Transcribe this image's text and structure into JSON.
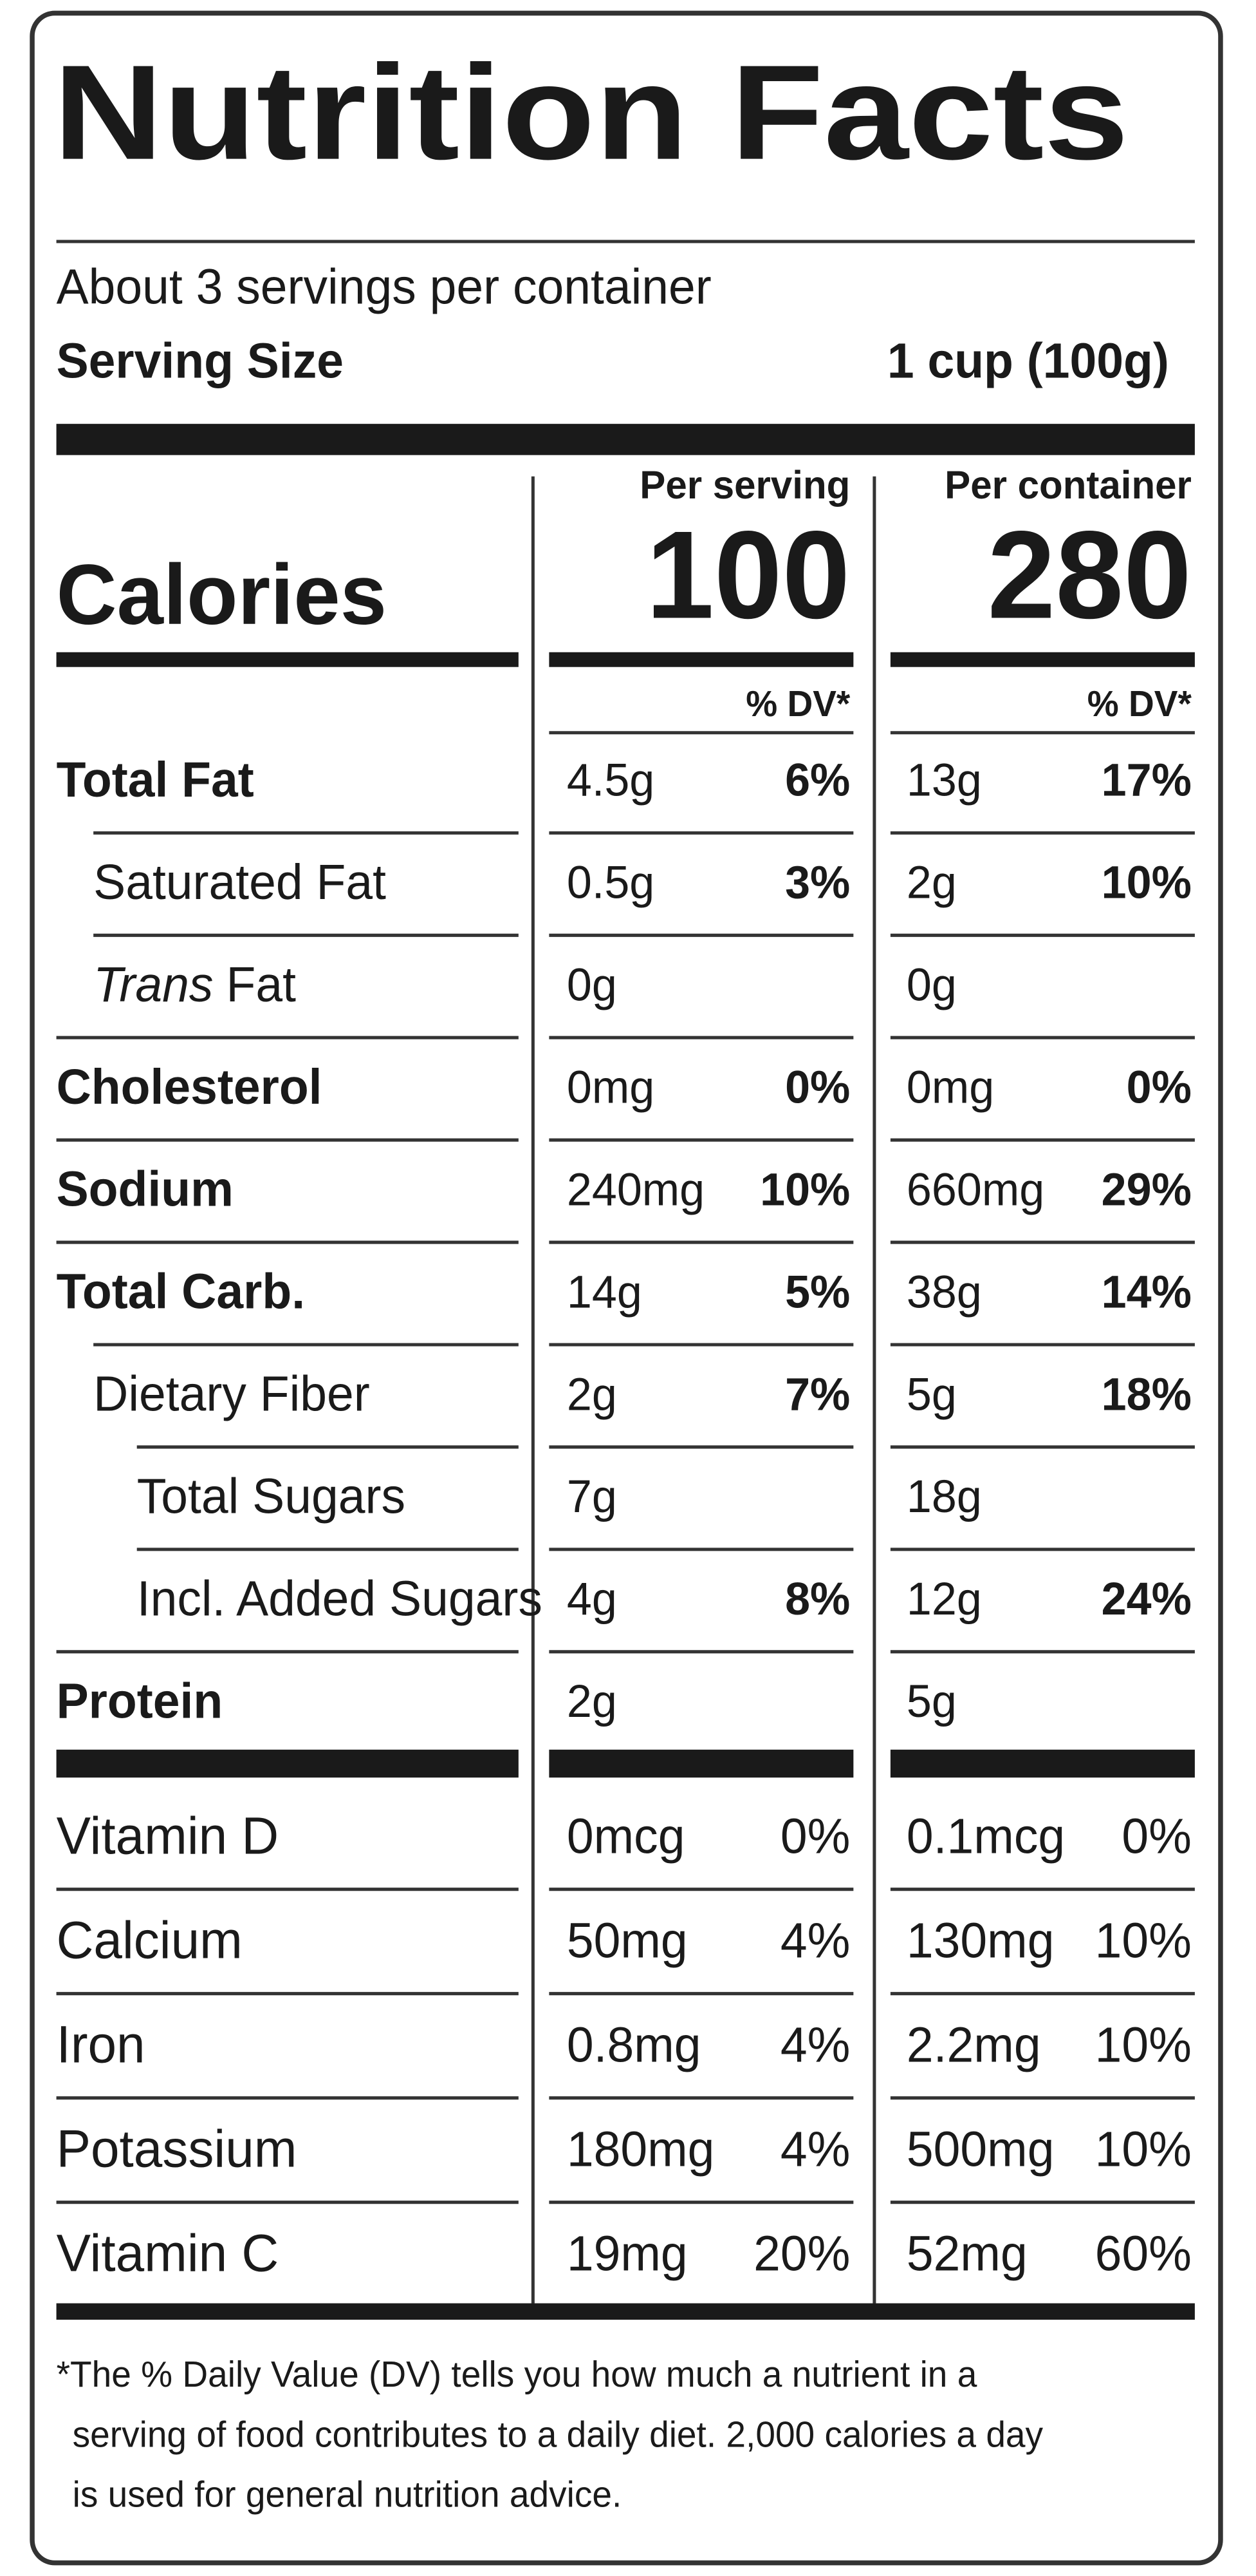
{
  "title": "Nutrition Facts",
  "servings": "About 3 servings per container",
  "serving_size": {
    "label": "Serving Size",
    "value": "1 cup (100g)"
  },
  "columns": [
    "Per serving",
    "Per container"
  ],
  "calories": {
    "label": "Calories",
    "values": [
      "100",
      "280"
    ]
  },
  "dv_header": "% DV*",
  "nutrients": [
    {
      "name": "Total Fat",
      "values": [
        "4.5g",
        "6%",
        "13g",
        "17%"
      ]
    },
    {
      "name": "Saturated Fat",
      "values": [
        "0.5g",
        "3%",
        "2g",
        "10%"
      ]
    },
    {
      "name_italic": "Trans",
      "name": "Fat",
      "values": [
        "0g",
        null,
        "0g",
        null
      ]
    },
    {
      "name": "Cholesterol",
      "values": [
        "0mg",
        "0%",
        "0mg",
        "0%"
      ]
    },
    {
      "name": "Sodium",
      "values": [
        "240mg",
        "10%",
        "660mg",
        "29%"
      ]
    },
    {
      "name": "Total Carb.",
      "values": [
        "14g",
        "5%",
        "38g",
        "14%"
      ]
    },
    {
      "name": "Dietary Fiber",
      "values": [
        "2g",
        "7%",
        "5g",
        "18%"
      ]
    },
    {
      "name": "Total Sugars",
      "values": [
        "7g",
        null,
        "18g",
        null
      ]
    },
    {
      "name": "Incl. Added Sugars",
      "values": [
        "4g",
        "8%",
        "12g",
        "24%"
      ]
    },
    {
      "name": "Protein",
      "values": [
        "2g",
        null,
        "5g",
        null
      ]
    }
  ],
  "vitamins": [
    {
      "name": "Vitamin D",
      "values": [
        "0mcg",
        "0%",
        "0.1mcg",
        "0%"
      ]
    },
    {
      "name": "Calcium",
      "values": [
        "50mg",
        "4%",
        "130mg",
        "10%"
      ]
    },
    {
      "name": "Iron",
      "values": [
        "0.8mg",
        "4%",
        "2.2mg",
        "10%"
      ]
    },
    {
      "name": "Potassium",
      "values": [
        "180mg",
        "4%",
        "500mg",
        "10%"
      ]
    },
    {
      "name": "Vitamin C",
      "values": [
        "19mg",
        "20%",
        "52mg",
        "60%"
      ]
    }
  ],
  "footnote": [
    "*The % Daily Value (DV) tells you how much a nutrient in a",
    "serving of food contributes to a daily diet. 2,000 calories a day",
    "is used for general nutrition advice."
  ]
}
